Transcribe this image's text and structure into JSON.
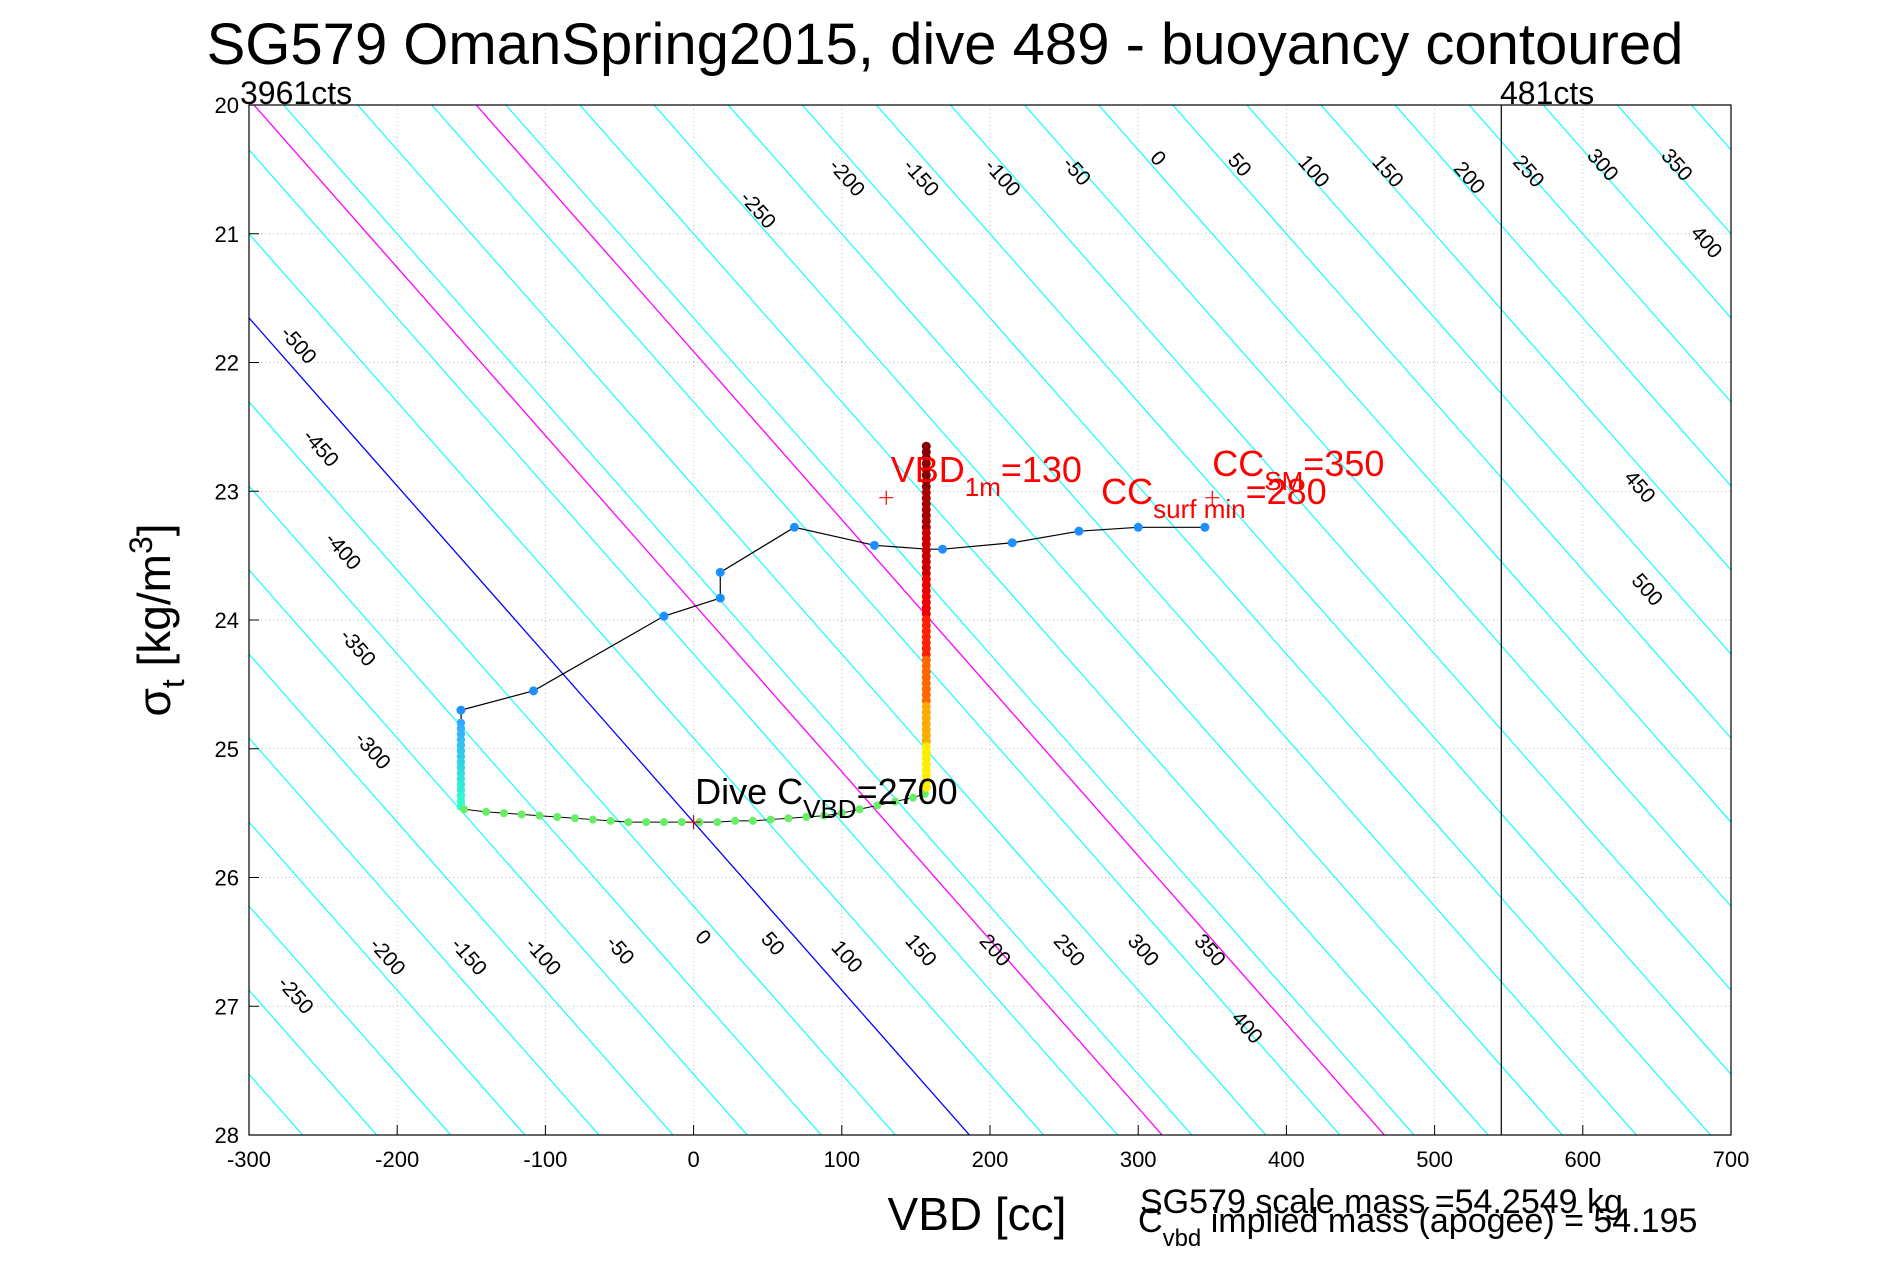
{
  "chart_data": {
    "type": "scatter",
    "title": "SG579 OmanSpring2015, dive 489 - buoyancy contoured",
    "xlabel": "VBD [cc]",
    "ylabel": {
      "base": "σ",
      "sub": "t",
      "unit_pre": " [kg/m",
      "unit_sup": "3",
      "unit_post": "]"
    },
    "xlim": [
      -300,
      700
    ],
    "ylim": [
      20,
      28
    ],
    "y_reversed": true,
    "grid": true,
    "x_ticks": [
      -300,
      -200,
      -100,
      0,
      100,
      200,
      300,
      400,
      500,
      600,
      700
    ],
    "y_ticks": [
      20,
      21,
      22,
      23,
      24,
      25,
      26,
      27,
      28
    ],
    "corner_labels": {
      "left": "3961cts",
      "right": "481cts"
    },
    "limit_line_vbd": 545,
    "contours": {
      "slope_vbd_per_sigma": 76.6,
      "levels": [
        -500,
        -450,
        -400,
        -350,
        -300,
        -250,
        -200,
        -150,
        -100,
        -50,
        0,
        50,
        100,
        150,
        200,
        250,
        300,
        350,
        400,
        450,
        500
      ],
      "zero_level_color": "#0000ff",
      "default_color": "#00ffff",
      "highlight_levels": [
        130,
        280
      ],
      "highlight_color": "#ff00ff",
      "top_labels": [
        {
          "text": "-500",
          "vbd": -270,
          "sigma": 21.9
        },
        {
          "text": "-450",
          "vbd": -255,
          "sigma": 22.7
        },
        {
          "text": "-400",
          "vbd": -240,
          "sigma": 23.5
        },
        {
          "text": "-350",
          "vbd": -230,
          "sigma": 24.25
        },
        {
          "text": "-300",
          "vbd": -220,
          "sigma": 25.05
        },
        {
          "text": "-250",
          "vbd": 40,
          "sigma": 20.85
        },
        {
          "text": "-200",
          "vbd": 100,
          "sigma": 20.6
        },
        {
          "text": "-150",
          "vbd": 150,
          "sigma": 20.6
        },
        {
          "text": "-100",
          "vbd": 205,
          "sigma": 20.6
        },
        {
          "text": "-50",
          "vbd": 255,
          "sigma": 20.55
        },
        {
          "text": "0",
          "vbd": 310,
          "sigma": 20.45
        },
        {
          "text": "50",
          "vbd": 365,
          "sigma": 20.5
        },
        {
          "text": "100",
          "vbd": 415,
          "sigma": 20.55
        },
        {
          "text": "150",
          "vbd": 465,
          "sigma": 20.55
        },
        {
          "text": "200",
          "vbd": 520,
          "sigma": 20.6
        },
        {
          "text": "250",
          "vbd": 560,
          "sigma": 20.55
        },
        {
          "text": "300",
          "vbd": 610,
          "sigma": 20.5
        },
        {
          "text": "350",
          "vbd": 660,
          "sigma": 20.5
        },
        {
          "text": "400",
          "vbd": 680,
          "sigma": 21.1
        },
        {
          "text": "450",
          "vbd": 635,
          "sigma": 23.0
        },
        {
          "text": "500",
          "vbd": 640,
          "sigma": 23.8
        }
      ],
      "bottom_labels": [
        {
          "text": "-250",
          "vbd": -272,
          "sigma": 26.95
        },
        {
          "text": "-200",
          "vbd": -210,
          "sigma": 26.65
        },
        {
          "text": "-150",
          "vbd": -155,
          "sigma": 26.65
        },
        {
          "text": "-100",
          "vbd": -105,
          "sigma": 26.65
        },
        {
          "text": "-50",
          "vbd": -53,
          "sigma": 26.6
        },
        {
          "text": "0",
          "vbd": 3,
          "sigma": 26.5
        },
        {
          "text": "50",
          "vbd": 50,
          "sigma": 26.55
        },
        {
          "text": "100",
          "vbd": 100,
          "sigma": 26.65
        },
        {
          "text": "150",
          "vbd": 150,
          "sigma": 26.6
        },
        {
          "text": "200",
          "vbd": 200,
          "sigma": 26.6
        },
        {
          "text": "250",
          "vbd": 250,
          "sigma": 26.6
        },
        {
          "text": "300",
          "vbd": 300,
          "sigma": 26.6
        },
        {
          "text": "350",
          "vbd": 345,
          "sigma": 26.6
        },
        {
          "text": "400",
          "vbd": 370,
          "sigma": 27.2
        }
      ]
    },
    "series": [
      {
        "kind": "track",
        "color": "#000000",
        "points": [
          [
            -155,
            25.45
          ],
          [
            -157,
            24.7
          ],
          [
            -108,
            24.55
          ],
          [
            -20,
            23.97
          ],
          [
            18,
            23.83
          ],
          [
            18,
            23.63
          ],
          [
            68,
            23.28
          ],
          [
            122,
            23.42
          ],
          [
            158,
            23.45
          ],
          [
            168,
            23.45
          ],
          [
            215,
            23.4
          ],
          [
            260,
            23.31
          ],
          [
            300,
            23.28
          ],
          [
            345,
            23.28
          ]
        ],
        "colored_points": [
          {
            "vbd": -157,
            "sigma": 24.7,
            "color": "#1e8fff"
          },
          {
            "vbd": -108,
            "sigma": 24.55,
            "color": "#1e8fff"
          },
          {
            "vbd": -20,
            "sigma": 23.97,
            "color": "#1e8fff"
          },
          {
            "vbd": 18,
            "sigma": 23.83,
            "color": "#1e8fff"
          },
          {
            "vbd": 18,
            "sigma": 23.63,
            "color": "#1e8fff"
          },
          {
            "vbd": 68,
            "sigma": 23.28,
            "color": "#1e8fff"
          },
          {
            "vbd": 122,
            "sigma": 23.42,
            "color": "#1e8fff"
          },
          {
            "vbd": 168,
            "sigma": 23.45,
            "color": "#1e8fff"
          },
          {
            "vbd": 215,
            "sigma": 23.4,
            "color": "#1e8fff"
          },
          {
            "vbd": 260,
            "sigma": 23.31,
            "color": "#1e8fff"
          },
          {
            "vbd": 300,
            "sigma": 23.28,
            "color": "#1e8fff"
          },
          {
            "vbd": 345,
            "sigma": 23.28,
            "color": "#1e8fff"
          }
        ]
      },
      {
        "kind": "descent-column",
        "vbd": -157,
        "sigma_from": 24.8,
        "sigma_to": 25.45,
        "count": 16,
        "color_top": "#33aaff",
        "color_bottom": "#33ffcc"
      },
      {
        "kind": "bottom-row",
        "color": "#66ee66",
        "points": [
          [
            -155,
            25.47
          ],
          [
            -140,
            25.49
          ],
          [
            -128,
            25.5
          ],
          [
            -116,
            25.51
          ],
          [
            -104,
            25.52
          ],
          [
            -92,
            25.53
          ],
          [
            -80,
            25.54
          ],
          [
            -68,
            25.55
          ],
          [
            -56,
            25.56
          ],
          [
            -44,
            25.57
          ],
          [
            -32,
            25.57
          ],
          [
            -20,
            25.57
          ],
          [
            -8,
            25.57
          ],
          [
            4,
            25.57
          ],
          [
            16,
            25.57
          ],
          [
            28,
            25.56
          ],
          [
            40,
            25.56
          ],
          [
            52,
            25.55
          ],
          [
            64,
            25.54
          ],
          [
            76,
            25.53
          ],
          [
            88,
            25.52
          ],
          [
            100,
            25.5
          ],
          [
            112,
            25.47
          ],
          [
            124,
            25.44
          ],
          [
            136,
            25.41
          ],
          [
            148,
            25.38
          ],
          [
            156,
            25.35
          ]
        ]
      },
      {
        "kind": "ascent-column",
        "vbd": 157,
        "sigma_from": 22.65,
        "sigma_to": 25.3,
        "count": 60,
        "colors": [
          "#880000",
          "#aa0000",
          "#cc0000",
          "#ee0000",
          "#ff2200",
          "#ff6600",
          "#ffaa00",
          "#ffee00"
        ]
      }
    ],
    "annotations": [
      {
        "text": "VBD",
        "sub": "1m",
        "post": "=130",
        "vbd": 133,
        "sigma": 22.93,
        "color": "#ff0000",
        "marker_vbd": 130,
        "marker_sigma": 23.05
      },
      {
        "text": "CC",
        "sub": "SM",
        "post": "=350",
        "vbd": 350,
        "sigma": 22.88,
        "color": "#ff0000",
        "marker_vbd": 350,
        "marker_sigma": 23.05
      },
      {
        "text": "CC",
        "sub": "surf min",
        "post": "=280",
        "vbd": 275,
        "sigma": 23.1,
        "color": "#ff0000"
      },
      {
        "text": "Dive C",
        "sub": "VBD",
        "post": "=2700",
        "vbd": 1,
        "sigma": 25.43,
        "color": "#000000",
        "marker_vbd": 0,
        "marker_sigma": 25.57
      }
    ],
    "footer": {
      "scale_mass": "SG579 scale mass =54.2549 kg",
      "implied_mass_pre": "C",
      "implied_mass_sub": "vbd",
      "implied_mass_post": " implied mass (apogee) = 54.195"
    }
  }
}
